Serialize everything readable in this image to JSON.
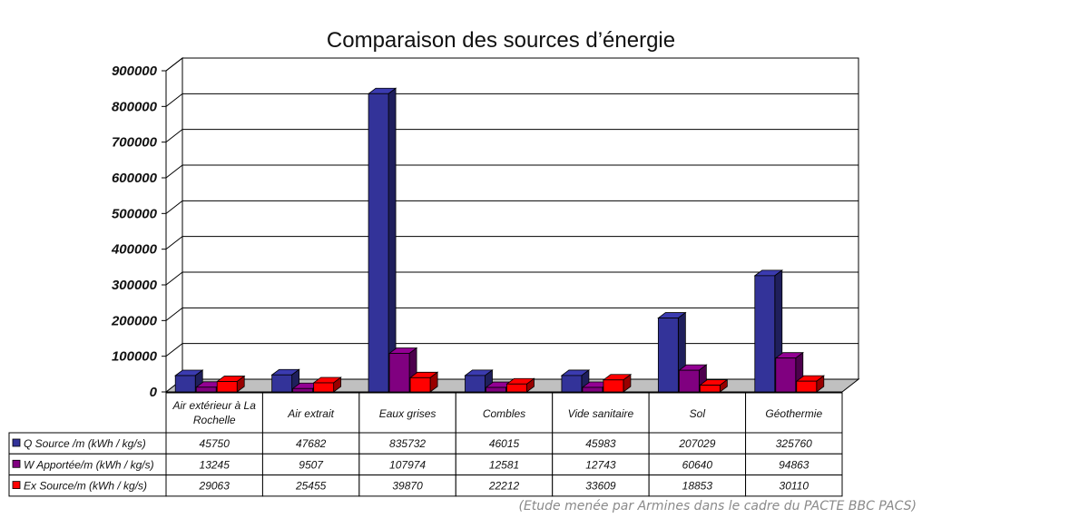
{
  "chart_data": {
    "type": "bar",
    "title": "Comparaison des sources d’énergie",
    "categories": [
      "Air extérieur à La Rochelle",
      "Air extrait",
      "Eaux grises",
      "Combles",
      "Vide sanitaire",
      "Sol",
      "Géothermie"
    ],
    "series": [
      {
        "name": "Q Source /m (kWh / kg/s)",
        "color": "#333399",
        "values": [
          45750,
          47682,
          835732,
          46015,
          45983,
          207029,
          325760
        ]
      },
      {
        "name": "W Apportée/m (kWh / kg/s)",
        "color": "#800080",
        "values": [
          13245,
          9507,
          107974,
          12581,
          12743,
          60640,
          94863
        ]
      },
      {
        "name": "Ex Source/m (kWh / kg/s)",
        "color": "#ff0000",
        "values": [
          29063,
          25455,
          39870,
          22212,
          33609,
          18853,
          30110
        ]
      }
    ],
    "ylim": [
      0,
      900000
    ],
    "yticks": [
      0,
      100000,
      200000,
      300000,
      400000,
      500000,
      600000,
      700000,
      800000,
      900000
    ],
    "grid": true,
    "legend": "data-table"
  },
  "note": "(Etude menée par Armines dans le cadre du PACTE BBC PACS)"
}
